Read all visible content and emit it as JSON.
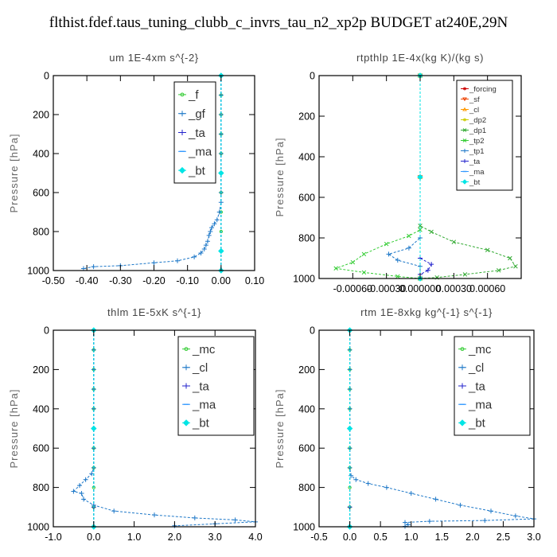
{
  "title": "flthist.fdef.taus_tuning_clubb_c_invrs_tau_n2_xp2p  BUDGET at240E,29N",
  "chart_data": [
    {
      "type": "line",
      "title": "um   1E-4xm s^{-2}",
      "ylabel": "Pressure [hPa]",
      "xlim": [
        -0.5,
        0.1
      ],
      "ylim": [
        1000,
        0
      ],
      "xticks": [
        "-0.50",
        "-0.40",
        "-0.30",
        "-0.20",
        "-0.10",
        "0.00",
        "0.10"
      ],
      "yticks": [
        "0",
        "200",
        "400",
        "600",
        "800",
        "1000"
      ],
      "legend_size": "large",
      "series": [
        {
          "name": "_f",
          "color": "#33cc33",
          "marker": "o",
          "points": [
            [
              0,
              0
            ],
            [
              0,
              100
            ],
            [
              0,
              200
            ],
            [
              0,
              300
            ],
            [
              0,
              400
            ],
            [
              0,
              500
            ],
            [
              0,
              600
            ],
            [
              0,
              700
            ],
            [
              0,
              800
            ],
            [
              0,
              900
            ],
            [
              0,
              1000
            ]
          ]
        },
        {
          "name": "_gf",
          "color": "#1e78c8",
          "marker": "+",
          "points": [
            [
              0,
              0
            ],
            [
              0,
              100
            ],
            [
              0,
              200
            ],
            [
              0,
              300
            ],
            [
              0,
              400
            ],
            [
              0,
              500
            ],
            [
              0,
              600
            ],
            [
              0,
              650
            ],
            [
              -0.005,
              700
            ],
            [
              -0.012,
              740
            ],
            [
              -0.02,
              760
            ],
            [
              -0.028,
              780
            ],
            [
              -0.032,
              800
            ],
            [
              -0.036,
              820
            ],
            [
              -0.04,
              850
            ],
            [
              -0.045,
              870
            ],
            [
              -0.05,
              890
            ],
            [
              -0.06,
              910
            ],
            [
              -0.08,
              930
            ],
            [
              -0.13,
              950
            ],
            [
              -0.2,
              960
            ],
            [
              -0.3,
              975
            ],
            [
              -0.38,
              980
            ],
            [
              -0.41,
              990
            ]
          ]
        },
        {
          "name": "_ta",
          "color": "#2222cc",
          "marker": "+",
          "points": [
            [
              0,
              0
            ],
            [
              0,
              500
            ],
            [
              0,
              900
            ],
            [
              0,
              1000
            ]
          ]
        },
        {
          "name": "_ma",
          "color": "#3399ff",
          "marker": "-",
          "points": [
            [
              0,
              0
            ],
            [
              0,
              500
            ],
            [
              0,
              900
            ],
            [
              0,
              1000
            ]
          ]
        },
        {
          "name": "_bt",
          "color": "#00e5e5",
          "marker": "diamond",
          "points": [
            [
              0,
              0
            ],
            [
              0,
              500
            ],
            [
              0,
              900
            ],
            [
              0,
              1000
            ]
          ]
        }
      ]
    },
    {
      "type": "line",
      "title": "rtpthlp   1E-4x(kg K)/(kg s)",
      "ylabel": "Pressure [hPa]",
      "xlim": [
        -0.0009,
        0.0009
      ],
      "ylim": [
        1000,
        0
      ],
      "xticks": [
        "-0.00060",
        "-0.00030",
        "0.000000",
        "0.00030",
        "0.00060"
      ],
      "yticks": [
        "0",
        "200",
        "400",
        "600",
        "800",
        "1000"
      ],
      "legend_size": "small",
      "series": [
        {
          "name": "_forcing",
          "color": "#cc0000",
          "marker": "o",
          "points": [
            [
              0,
              0
            ],
            [
              0,
              500
            ],
            [
              0,
              1000
            ]
          ]
        },
        {
          "name": "_sf",
          "color": "#ee4400",
          "marker": "v",
          "points": [
            [
              0,
              0
            ],
            [
              0,
              500
            ],
            [
              0,
              1000
            ]
          ]
        },
        {
          "name": "_cl",
          "color": "#ff9900",
          "marker": "^",
          "points": [
            [
              0,
              0
            ],
            [
              0,
              500
            ],
            [
              0,
              1000
            ]
          ]
        },
        {
          "name": "_dp2",
          "color": "#cccc00",
          "marker": "o",
          "points": [
            [
              0,
              0
            ],
            [
              0,
              500
            ],
            [
              0,
              1000
            ]
          ]
        },
        {
          "name": "_dp1",
          "color": "#33aa33",
          "marker": "x",
          "points": [
            [
              0,
              0
            ],
            [
              0,
              740
            ],
            [
              0.0001,
              770
            ],
            [
              0.0003,
              820
            ],
            [
              0.0006,
              860
            ],
            [
              0.0008,
              900
            ],
            [
              0.00085,
              940
            ],
            [
              0.0007,
              960
            ],
            [
              0.0004,
              980
            ],
            [
              0.00015,
              995
            ],
            [
              0,
              1000
            ]
          ]
        },
        {
          "name": "_tp2",
          "color": "#33cc33",
          "marker": "x",
          "points": [
            [
              0,
              0
            ],
            [
              0,
              760
            ],
            [
              -0.0001,
              790
            ],
            [
              -0.0003,
              830
            ],
            [
              -0.0005,
              880
            ],
            [
              -0.0006,
              920
            ],
            [
              -0.00075,
              950
            ],
            [
              -0.0005,
              970
            ],
            [
              -0.0002,
              990
            ],
            [
              0,
              1000
            ]
          ]
        },
        {
          "name": "_tp1",
          "color": "#1e78c8",
          "marker": "+",
          "points": [
            [
              0,
              0
            ],
            [
              0,
              800
            ],
            [
              -0.0001,
              850
            ],
            [
              -0.00028,
              880
            ],
            [
              -0.0002,
              910
            ],
            [
              0,
              940
            ],
            [
              0,
              1000
            ]
          ]
        },
        {
          "name": "_ta",
          "color": "#2222cc",
          "marker": "+",
          "points": [
            [
              0,
              0
            ],
            [
              0,
              900
            ],
            [
              0.0001,
              930
            ],
            [
              7e-05,
              960
            ],
            [
              0,
              980
            ],
            [
              0,
              1000
            ]
          ]
        },
        {
          "name": "_ma",
          "color": "#3399ff",
          "marker": "-",
          "points": [
            [
              0,
              0
            ],
            [
              0,
              500
            ],
            [
              0,
              1000
            ]
          ]
        },
        {
          "name": "_bt",
          "color": "#00e5e5",
          "marker": "diamond",
          "points": [
            [
              0,
              0
            ],
            [
              0,
              500
            ],
            [
              0,
              1000
            ]
          ]
        }
      ]
    },
    {
      "type": "line",
      "title": "thlm   1E-5xK s^{-1}",
      "ylabel": "Pressure [hPa]",
      "xlim": [
        -1.0,
        4.0
      ],
      "ylim": [
        1000,
        0
      ],
      "xticks": [
        "-1.0",
        "0.0",
        "1.0",
        "2.0",
        "3.0",
        "4.0"
      ],
      "yticks": [
        "0",
        "200",
        "400",
        "600",
        "800",
        "1000"
      ],
      "legend_size": "large",
      "series": [
        {
          "name": "_mc",
          "color": "#33cc33",
          "marker": "o",
          "points": [
            [
              0,
              0
            ],
            [
              0,
              100
            ],
            [
              0,
              200
            ],
            [
              0,
              300
            ],
            [
              0,
              400
            ],
            [
              0,
              500
            ],
            [
              0,
              600
            ],
            [
              0,
              700
            ],
            [
              0,
              800
            ],
            [
              0,
              900
            ],
            [
              0,
              1000
            ]
          ]
        },
        {
          "name": "_cl",
          "color": "#1e78c8",
          "marker": "+",
          "points": [
            [
              0,
              0
            ],
            [
              0,
              100
            ],
            [
              0,
              200
            ],
            [
              0,
              300
            ],
            [
              0,
              400
            ],
            [
              0,
              500
            ],
            [
              0,
              600
            ],
            [
              0,
              700
            ],
            [
              -0.05,
              730
            ],
            [
              -0.2,
              760
            ],
            [
              -0.35,
              790
            ],
            [
              -0.5,
              820
            ],
            [
              -0.3,
              830
            ],
            [
              -0.25,
              860
            ],
            [
              0,
              890
            ],
            [
              0.5,
              920
            ],
            [
              1.5,
              940
            ],
            [
              2.5,
              955
            ],
            [
              3.5,
              965
            ],
            [
              4.0,
              975
            ],
            [
              3.0,
              985
            ],
            [
              2.0,
              995
            ]
          ]
        },
        {
          "name": "_ta",
          "color": "#2222cc",
          "marker": "+",
          "points": [
            [
              0,
              0
            ],
            [
              0,
              500
            ],
            [
              0,
              900
            ],
            [
              0,
              1000
            ]
          ]
        },
        {
          "name": "_ma",
          "color": "#3399ff",
          "marker": "-",
          "points": [
            [
              0,
              0
            ],
            [
              0,
              500
            ],
            [
              0,
              1000
            ]
          ]
        },
        {
          "name": "_bt",
          "color": "#00e5e5",
          "marker": "diamond",
          "points": [
            [
              0,
              0
            ],
            [
              0,
              500
            ],
            [
              0,
              1000
            ]
          ]
        }
      ]
    },
    {
      "type": "line",
      "title": "rtm   1E-8xkg kg^{-1} s^{-1}",
      "ylabel": "Pressure [hPa]",
      "xlim": [
        -0.5,
        3.0
      ],
      "ylim": [
        1000,
        0
      ],
      "xticks": [
        "-0.5",
        "0.0",
        "0.5",
        "1.0",
        "1.5",
        "2.0",
        "2.5",
        "3.0"
      ],
      "yticks": [
        "0",
        "200",
        "400",
        "600",
        "800",
        "1000"
      ],
      "legend_size": "large",
      "series": [
        {
          "name": "_mc",
          "color": "#33cc33",
          "marker": "o",
          "points": [
            [
              0,
              0
            ],
            [
              0,
              100
            ],
            [
              0,
              200
            ],
            [
              0,
              300
            ],
            [
              0,
              400
            ],
            [
              0,
              500
            ],
            [
              0,
              600
            ],
            [
              0,
              700
            ],
            [
              0,
              800
            ],
            [
              0,
              900
            ],
            [
              0,
              1000
            ]
          ]
        },
        {
          "name": "_cl",
          "color": "#1e78c8",
          "marker": "+",
          "points": [
            [
              0,
              0
            ],
            [
              0,
              100
            ],
            [
              0,
              200
            ],
            [
              0,
              300
            ],
            [
              0,
              400
            ],
            [
              0,
              500
            ],
            [
              0,
              600
            ],
            [
              0,
              700
            ],
            [
              0.02,
              740
            ],
            [
              0.1,
              760
            ],
            [
              0.3,
              780
            ],
            [
              0.6,
              800
            ],
            [
              1.0,
              830
            ],
            [
              1.4,
              860
            ],
            [
              1.8,
              890
            ],
            [
              2.3,
              920
            ],
            [
              2.7,
              945
            ],
            [
              3.0,
              960
            ],
            [
              2.2,
              968
            ],
            [
              1.3,
              972
            ],
            [
              0.9,
              978
            ],
            [
              0.95,
              990
            ],
            [
              0.9,
              998
            ]
          ]
        },
        {
          "name": "_ta",
          "color": "#2222cc",
          "marker": "+",
          "points": [
            [
              0,
              0
            ],
            [
              0,
              500
            ],
            [
              0,
              900
            ],
            [
              0,
              1000
            ]
          ]
        },
        {
          "name": "_ma",
          "color": "#3399ff",
          "marker": "-",
          "points": [
            [
              0,
              0
            ],
            [
              0,
              500
            ],
            [
              0,
              1000
            ]
          ]
        },
        {
          "name": "_bt",
          "color": "#00e5e5",
          "marker": "diamond",
          "points": [
            [
              0,
              0
            ],
            [
              0,
              500
            ],
            [
              0,
              1000
            ]
          ]
        }
      ]
    }
  ]
}
